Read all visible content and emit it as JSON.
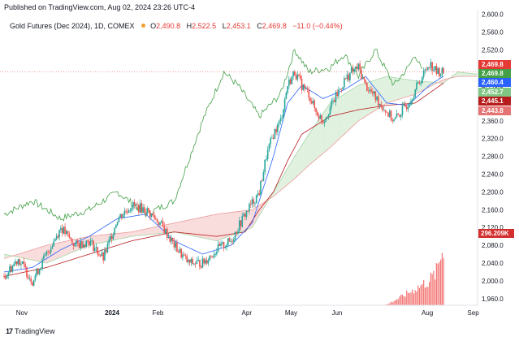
{
  "header": {
    "published": "Published on TradingView.com, Aug 02, 2024 23:26 UTC-4"
  },
  "legend": {
    "symbol": "Gold Futures (Dec 2024), 1D, COMEX",
    "open_label": "O",
    "open": "2,490.8",
    "high_label": "H",
    "high": "2,522.5",
    "low_label": "L",
    "low": "2,453.1",
    "close_label": "C",
    "close": "2,469.8",
    "change": "−11.0 (−0.44%)"
  },
  "branding": {
    "logo": "17",
    "name": "TradingView"
  },
  "colors": {
    "up": "#26a69a",
    "down": "#ef5350",
    "conversion": "#2962ff",
    "base": "#b71c1c",
    "lagging": "#43a047",
    "cloud_bull": "#a5d6a7",
    "cloud_bear": "#ef9a9a",
    "volume": "#ef5350",
    "vol_tag": "#d32f2f"
  },
  "chart_data": {
    "type": "candlestick",
    "symbol": "Gold Futures (Dec 2024)",
    "timeframe": "1D",
    "y_axis": {
      "range": [
        1945,
        2610
      ],
      "ticks": [
        "2,600.0",
        "2,560.0",
        "2,520.0",
        "2,480.0",
        "2,440.0",
        "2,400.0",
        "2,360.0",
        "2,320.0",
        "2,280.0",
        "2,240.0",
        "2,200.0",
        "2,160.0",
        "2,120.0",
        "2,080.0",
        "2,040.0",
        "2,000.0",
        "1,960.0"
      ],
      "tick_values": [
        2600,
        2560,
        2520,
        2480,
        2440,
        2400,
        2360,
        2320,
        2280,
        2240,
        2200,
        2160,
        2120,
        2080,
        2040,
        2000,
        1960
      ]
    },
    "x_axis": {
      "ticks": [
        "Nov",
        "2024",
        "Feb",
        "Apr",
        "May",
        "Jun",
        "Aug",
        "Sep"
      ],
      "tick_dates": [
        "2023-11-01",
        "2024-01-01",
        "2024-02-01",
        "2024-04-01",
        "2024-05-01",
        "2024-06-01",
        "2024-08-01",
        "2024-09-01"
      ]
    },
    "price_tags": [
      {
        "label": "2,469.8",
        "value": 2469.8,
        "color": "#e53935"
      },
      {
        "label": "2,469.8",
        "value": 2469.8,
        "color": "#43a047"
      },
      {
        "label": "2,460.4",
        "value": 2460.4,
        "color": "#2962ff"
      },
      {
        "label": "2,452.7",
        "value": 2452.7,
        "color": "#81c784"
      },
      {
        "label": "2,445.1",
        "value": 2445.1,
        "color": "#b71c1c"
      },
      {
        "label": "2,443.8",
        "value": 2443.8,
        "color": "#e57373"
      }
    ],
    "volume_tag": "296.209K",
    "volume_last": 296209,
    "grid": false,
    "anchors": {
      "close": [
        [
          0,
          2010
        ],
        [
          10,
          2050
        ],
        [
          20,
          2000
        ],
        [
          30,
          2060
        ],
        [
          40,
          2120
        ],
        [
          50,
          2080
        ],
        [
          60,
          2090
        ],
        [
          70,
          2050
        ],
        [
          80,
          2140
        ],
        [
          90,
          2170
        ],
        [
          100,
          2160
        ],
        [
          110,
          2130
        ],
        [
          120,
          2080
        ],
        [
          130,
          2040
        ],
        [
          140,
          2040
        ],
        [
          150,
          2070
        ],
        [
          160,
          2090
        ],
        [
          170,
          2150
        ],
        [
          180,
          2200
        ],
        [
          185,
          2280
        ],
        [
          190,
          2330
        ],
        [
          195,
          2360
        ],
        [
          200,
          2440
        ],
        [
          205,
          2470
        ],
        [
          210,
          2440
        ],
        [
          215,
          2420
        ],
        [
          220,
          2380
        ],
        [
          225,
          2360
        ],
        [
          230,
          2390
        ],
        [
          235,
          2420
        ],
        [
          240,
          2450
        ],
        [
          245,
          2470
        ],
        [
          250,
          2480
        ],
        [
          255,
          2440
        ],
        [
          260,
          2420
        ],
        [
          265,
          2400
        ],
        [
          270,
          2380
        ],
        [
          275,
          2360
        ],
        [
          280,
          2380
        ],
        [
          285,
          2400
        ],
        [
          290,
          2430
        ],
        [
          295,
          2460
        ],
        [
          300,
          2490
        ],
        [
          305,
          2470
        ],
        [
          310,
          2469.8
        ]
      ],
      "conversion": [
        [
          0,
          2020
        ],
        [
          20,
          2030
        ],
        [
          40,
          2070
        ],
        [
          60,
          2100
        ],
        [
          80,
          2140
        ],
        [
          100,
          2150
        ],
        [
          120,
          2090
        ],
        [
          140,
          2060
        ],
        [
          160,
          2080
        ],
        [
          175,
          2130
        ],
        [
          190,
          2280
        ],
        [
          200,
          2400
        ],
        [
          210,
          2440
        ],
        [
          225,
          2410
        ],
        [
          240,
          2430
        ],
        [
          255,
          2460
        ],
        [
          270,
          2400
        ],
        [
          285,
          2395
        ],
        [
          300,
          2440
        ],
        [
          310,
          2460.4
        ]
      ],
      "base": [
        [
          0,
          2010
        ],
        [
          30,
          2030
        ],
        [
          60,
          2060
        ],
        [
          90,
          2090
        ],
        [
          120,
          2110
        ],
        [
          150,
          2100
        ],
        [
          170,
          2110
        ],
        [
          180,
          2160
        ],
        [
          190,
          2200
        ],
        [
          200,
          2270
        ],
        [
          210,
          2330
        ],
        [
          230,
          2370
        ],
        [
          250,
          2385
        ],
        [
          270,
          2395
        ],
        [
          290,
          2400
        ],
        [
          310,
          2445.1
        ]
      ],
      "lagging": [
        [
          0,
          2150
        ],
        [
          20,
          2180
        ],
        [
          40,
          2140
        ],
        [
          60,
          2160
        ],
        [
          80,
          2200
        ],
        [
          100,
          2150
        ],
        [
          120,
          2180
        ],
        [
          140,
          2360
        ],
        [
          155,
          2470
        ],
        [
          165,
          2440
        ],
        [
          180,
          2370
        ],
        [
          195,
          2420
        ],
        [
          205,
          2520
        ],
        [
          215,
          2470
        ],
        [
          230,
          2480
        ],
        [
          240,
          2510
        ],
        [
          250,
          2460
        ],
        [
          262,
          2520
        ],
        [
          275,
          2440
        ],
        [
          285,
          2480
        ],
        [
          290,
          2510
        ],
        [
          295,
          2469.8
        ]
      ],
      "span_a": [
        [
          0,
          2060
        ],
        [
          30,
          2040
        ],
        [
          60,
          2080
        ],
        [
          90,
          2100
        ],
        [
          120,
          2110
        ],
        [
          150,
          2090
        ],
        [
          175,
          2120
        ],
        [
          190,
          2200
        ],
        [
          205,
          2280
        ],
        [
          215,
          2330
        ],
        [
          230,
          2400
        ],
        [
          250,
          2440
        ],
        [
          270,
          2460
        ],
        [
          290,
          2450
        ],
        [
          310,
          2445
        ],
        [
          320,
          2470
        ],
        [
          334,
          2465
        ]
      ],
      "span_b": [
        [
          0,
          2050
        ],
        [
          30,
          2080
        ],
        [
          60,
          2100
        ],
        [
          90,
          2110
        ],
        [
          120,
          2130
        ],
        [
          150,
          2150
        ],
        [
          175,
          2160
        ],
        [
          190,
          2190
        ],
        [
          205,
          2230
        ],
        [
          215,
          2260
        ],
        [
          230,
          2300
        ],
        [
          250,
          2360
        ],
        [
          270,
          2400
        ],
        [
          290,
          2420
        ],
        [
          310,
          2452.7
        ],
        [
          320,
          2460
        ],
        [
          334,
          2460
        ]
      ],
      "volume": [
        [
          0,
          0
        ],
        [
          265,
          0
        ],
        [
          270,
          4000
        ],
        [
          280,
          40000
        ],
        [
          290,
          80000
        ],
        [
          300,
          120000
        ],
        [
          305,
          160000
        ],
        [
          310,
          296209
        ]
      ]
    }
  }
}
